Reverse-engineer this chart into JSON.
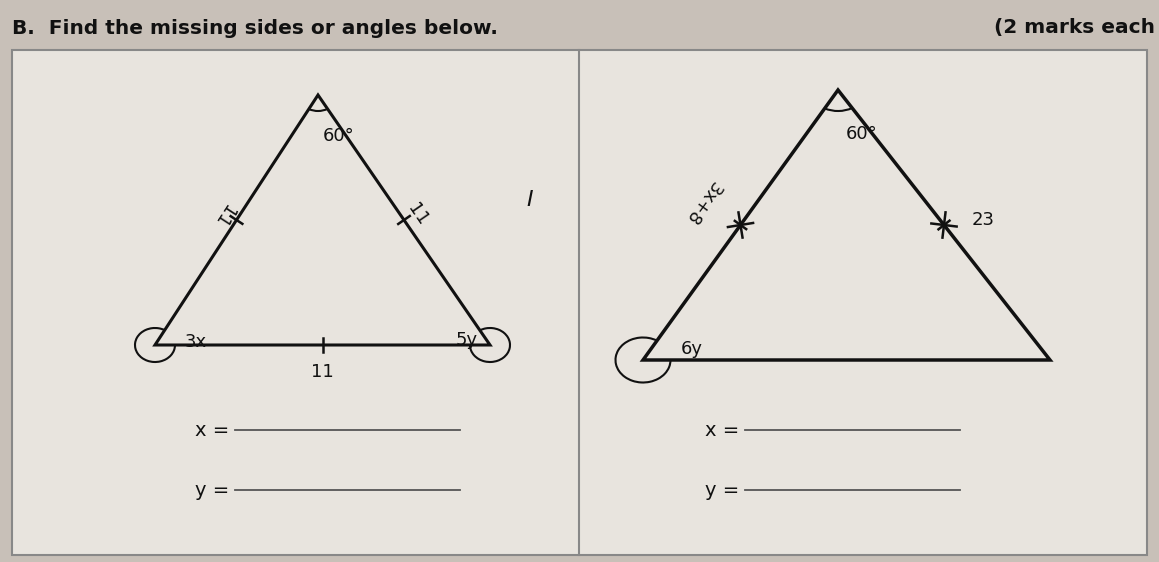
{
  "title": "B.  Find the missing sides or angles below.",
  "title_right": "(2 marks each",
  "bg_color": "#c8c0b8",
  "box_bg": "#e8e4de",
  "title_fontsize": 14.5,
  "title_fontweight": "bold",
  "triangle1": {
    "angle_top": "60°",
    "angle_bottom_left": "3x",
    "angle_bottom_right": "5y",
    "side_left": "11",
    "side_right": "11",
    "side_bottom": "11"
  },
  "triangle2": {
    "angle_top": "60°",
    "angle_bottom_left": "6y",
    "side_left": "3x+8",
    "side_right": "23"
  },
  "label_x": "x =",
  "label_y": "y =",
  "line_color": "#111111",
  "text_color": "#111111",
  "answer_line_color": "#555555"
}
